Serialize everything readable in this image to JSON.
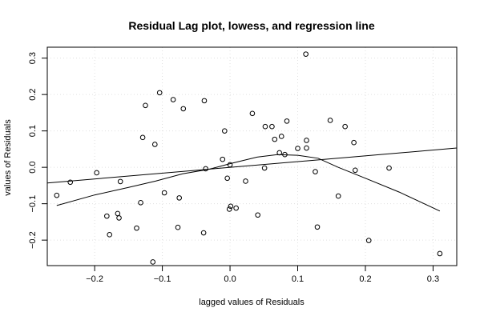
{
  "chart_data": {
    "type": "scatter",
    "title": "Residual Lag plot, lowess, and regression line",
    "xlabel": "lagged values of Residuals",
    "ylabel": "values of Residuals",
    "xlim": [
      -0.27,
      0.335
    ],
    "ylim": [
      -0.27,
      0.33
    ],
    "x_ticks": [
      -0.2,
      -0.1,
      0.0,
      0.1,
      0.2,
      0.3
    ],
    "x_tick_labels": [
      "−0.2",
      "−0.1",
      "0.0",
      "0.1",
      "0.2",
      "0.3"
    ],
    "y_ticks": [
      -0.2,
      -0.1,
      0.0,
      0.1,
      0.2,
      0.3
    ],
    "y_tick_labels": [
      "−0.2",
      "−0.1",
      "0.0",
      "0.1",
      "0.2",
      "0.3"
    ],
    "grid": true,
    "points": [
      {
        "x": -0.256,
        "y": -0.077
      },
      {
        "x": -0.236,
        "y": -0.041
      },
      {
        "x": -0.197,
        "y": -0.015
      },
      {
        "x": -0.182,
        "y": -0.134
      },
      {
        "x": -0.178,
        "y": -0.185
      },
      {
        "x": -0.166,
        "y": -0.127
      },
      {
        "x": -0.164,
        "y": -0.139
      },
      {
        "x": -0.162,
        "y": -0.039
      },
      {
        "x": -0.138,
        "y": -0.167
      },
      {
        "x": -0.132,
        "y": -0.097
      },
      {
        "x": -0.129,
        "y": 0.082
      },
      {
        "x": -0.125,
        "y": 0.17
      },
      {
        "x": -0.114,
        "y": -0.26
      },
      {
        "x": -0.111,
        "y": 0.063
      },
      {
        "x": -0.104,
        "y": 0.205
      },
      {
        "x": -0.097,
        "y": -0.07
      },
      {
        "x": -0.084,
        "y": 0.186
      },
      {
        "x": -0.077,
        "y": -0.165
      },
      {
        "x": -0.075,
        "y": -0.084
      },
      {
        "x": -0.069,
        "y": 0.161
      },
      {
        "x": -0.039,
        "y": -0.18
      },
      {
        "x": -0.038,
        "y": 0.183
      },
      {
        "x": -0.036,
        "y": -0.004
      },
      {
        "x": -0.011,
        "y": 0.022
      },
      {
        "x": -0.008,
        "y": 0.1
      },
      {
        "x": -0.004,
        "y": -0.03
      },
      {
        "x": -0.001,
        "y": -0.115
      },
      {
        "x": 0.0,
        "y": 0.007
      },
      {
        "x": 0.001,
        "y": -0.107
      },
      {
        "x": 0.009,
        "y": -0.112
      },
      {
        "x": 0.023,
        "y": -0.038
      },
      {
        "x": 0.033,
        "y": 0.148
      },
      {
        "x": 0.041,
        "y": -0.131
      },
      {
        "x": 0.051,
        "y": -0.002
      },
      {
        "x": 0.052,
        "y": 0.112
      },
      {
        "x": 0.062,
        "y": 0.112
      },
      {
        "x": 0.066,
        "y": 0.077
      },
      {
        "x": 0.073,
        "y": 0.04
      },
      {
        "x": 0.076,
        "y": 0.085
      },
      {
        "x": 0.081,
        "y": 0.035
      },
      {
        "x": 0.084,
        "y": 0.127
      },
      {
        "x": 0.1,
        "y": 0.052
      },
      {
        "x": 0.112,
        "y": 0.311
      },
      {
        "x": 0.113,
        "y": 0.074
      },
      {
        "x": 0.113,
        "y": 0.053
      },
      {
        "x": 0.126,
        "y": -0.012
      },
      {
        "x": 0.129,
        "y": -0.164
      },
      {
        "x": 0.148,
        "y": 0.129
      },
      {
        "x": 0.16,
        "y": -0.079
      },
      {
        "x": 0.17,
        "y": 0.112
      },
      {
        "x": 0.183,
        "y": 0.068
      },
      {
        "x": 0.185,
        "y": -0.008
      },
      {
        "x": 0.205,
        "y": -0.201
      },
      {
        "x": 0.235,
        "y": -0.002
      },
      {
        "x": 0.31,
        "y": -0.237
      }
    ],
    "regression_line": [
      {
        "x": -0.27,
        "y": -0.043
      },
      {
        "x": 0.335,
        "y": 0.053
      }
    ],
    "lowess": [
      {
        "x": -0.256,
        "y": -0.105
      },
      {
        "x": -0.2,
        "y": -0.076
      },
      {
        "x": -0.15,
        "y": -0.055
      },
      {
        "x": -0.11,
        "y": -0.038
      },
      {
        "x": -0.07,
        "y": -0.018
      },
      {
        "x": -0.03,
        "y": -0.005
      },
      {
        "x": 0.0,
        "y": 0.01
      },
      {
        "x": 0.04,
        "y": 0.028
      },
      {
        "x": 0.07,
        "y": 0.035
      },
      {
        "x": 0.1,
        "y": 0.033
      },
      {
        "x": 0.13,
        "y": 0.025
      },
      {
        "x": 0.16,
        "y": 0.0
      },
      {
        "x": 0.2,
        "y": -0.03
      },
      {
        "x": 0.25,
        "y": -0.068
      },
      {
        "x": 0.31,
        "y": -0.12
      }
    ]
  }
}
